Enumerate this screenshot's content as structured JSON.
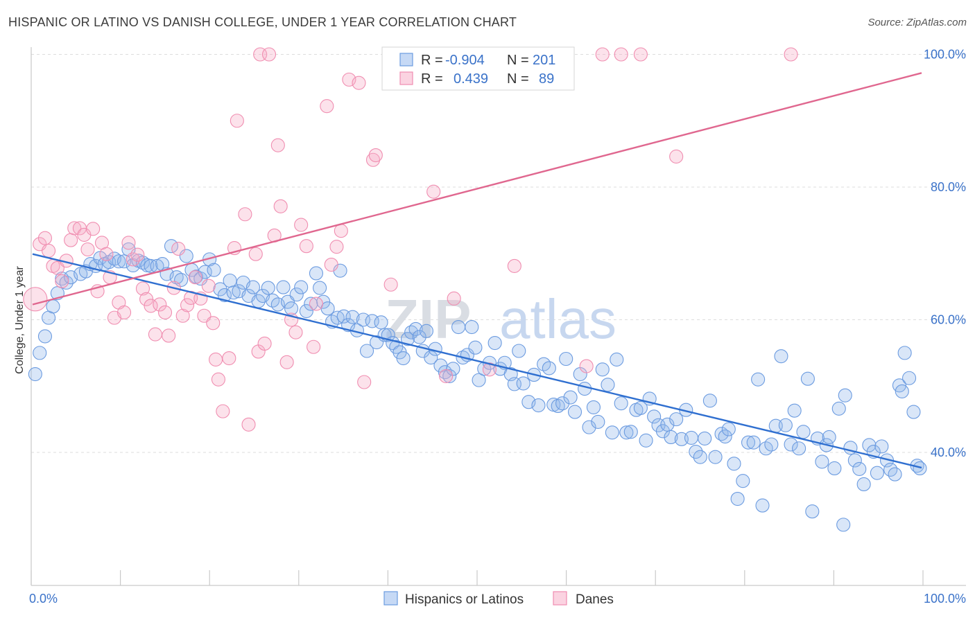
{
  "header": {
    "title": "HISPANIC OR LATINO VS DANISH COLLEGE, UNDER 1 YEAR CORRELATION CHART",
    "source": "Source: ZipAtlas.com"
  },
  "watermark": {
    "part1": "ZIP",
    "part2": "atlas"
  },
  "stats": {
    "rows": [
      {
        "r_label": "R =",
        "r_value": "-0.904",
        "n_label": "N =",
        "n_value": "201",
        "color": "#6b9be0"
      },
      {
        "r_label": "R =",
        "r_value": "0.439",
        "n_label": "N =",
        "n_value": "89",
        "color": "#f08db0"
      }
    ]
  },
  "legend": {
    "items": [
      {
        "label": "Hispanics or Latinos",
        "color": "#6b9be0"
      },
      {
        "label": "Danes",
        "color": "#f08db0"
      }
    ]
  },
  "chart_data": {
    "type": "scatter",
    "title": "HISPANIC OR LATINO VS DANISH COLLEGE, UNDER 1 YEAR CORRELATION CHART",
    "xlabel": "",
    "ylabel": "College, Under 1 year",
    "xlim": [
      0,
      100
    ],
    "ylim": [
      20,
      101
    ],
    "x_tick_labels": [
      "0.0%",
      "100.0%"
    ],
    "y_ticks": [
      40,
      60,
      80,
      100
    ],
    "y_tick_labels": [
      "40.0%",
      "60.0%",
      "80.0%",
      "100.0%"
    ],
    "grid": true,
    "legend_position": "bottom",
    "series": [
      {
        "name": "Hispanics or Latinos",
        "color": "#6b9be0",
        "trend": {
          "x": [
            0,
            100
          ],
          "y": [
            69.9,
            37.7
          ]
        },
        "points": [
          [
            0.3,
            51.8
          ],
          [
            0.8,
            55
          ],
          [
            1.4,
            57.5
          ],
          [
            1.8,
            60.3
          ],
          [
            2.3,
            62
          ],
          [
            2.8,
            64
          ],
          [
            3.3,
            66.2
          ],
          [
            3.8,
            65.6
          ],
          [
            4.3,
            66.4
          ],
          [
            5.4,
            66.9
          ],
          [
            6,
            67.3
          ],
          [
            6.5,
            68.4
          ],
          [
            7.1,
            68.1
          ],
          [
            7.6,
            69.3
          ],
          [
            8.1,
            68.4
          ],
          [
            8.6,
            68.7
          ],
          [
            9.2,
            69.2
          ],
          [
            9.7,
            68.8
          ],
          [
            10.3,
            68.8
          ],
          [
            10.8,
            70.6
          ],
          [
            11.3,
            68.2
          ],
          [
            11.9,
            68.9
          ],
          [
            12.4,
            68.6
          ],
          [
            12.9,
            68.2
          ],
          [
            13.3,
            68.1
          ],
          [
            14,
            68.1
          ],
          [
            14.6,
            68.4
          ],
          [
            15.1,
            66.9
          ],
          [
            15.6,
            71.1
          ],
          [
            16.2,
            66.4
          ],
          [
            16.7,
            66
          ],
          [
            17.3,
            69.6
          ],
          [
            17.9,
            67.5
          ],
          [
            18.4,
            66.5
          ],
          [
            18.9,
            66.2
          ],
          [
            19.4,
            67.2
          ],
          [
            19.9,
            69.1
          ],
          [
            20.4,
            67.5
          ],
          [
            21.1,
            64.6
          ],
          [
            21.6,
            63.7
          ],
          [
            22.2,
            65.9
          ],
          [
            22.6,
            64.1
          ],
          [
            23.2,
            64.3
          ],
          [
            23.7,
            65.6
          ],
          [
            24.3,
            63.6
          ],
          [
            24.8,
            64.9
          ],
          [
            25.4,
            62.8
          ],
          [
            25.9,
            63.6
          ],
          [
            26.5,
            64.8
          ],
          [
            27,
            62.9
          ],
          [
            27.6,
            62.3
          ],
          [
            28.2,
            64.9
          ],
          [
            28.7,
            62.7
          ],
          [
            29.1,
            61.7
          ],
          [
            29.7,
            63.8
          ],
          [
            30.2,
            64.9
          ],
          [
            30.8,
            61.3
          ],
          [
            31.3,
            62.4
          ],
          [
            31.9,
            67
          ],
          [
            32.3,
            64.8
          ],
          [
            32.7,
            62.7
          ],
          [
            33.2,
            61.7
          ],
          [
            33.7,
            59.7
          ],
          [
            34.3,
            60.3
          ],
          [
            34.6,
            67.4
          ],
          [
            35,
            60.5
          ],
          [
            35.5,
            59.2
          ],
          [
            36,
            60.4
          ],
          [
            36.5,
            58.4
          ],
          [
            37.2,
            60
          ],
          [
            37.6,
            55.3
          ],
          [
            38.2,
            59.8
          ],
          [
            38.7,
            56.6
          ],
          [
            39.2,
            59.6
          ],
          [
            39.6,
            57.7
          ],
          [
            40,
            57.7
          ],
          [
            40.5,
            56.5
          ],
          [
            40.9,
            55.9
          ],
          [
            41.3,
            55.1
          ],
          [
            41.7,
            54.2
          ],
          [
            42.2,
            57.1
          ],
          [
            42.6,
            58.1
          ],
          [
            43.1,
            58.6
          ],
          [
            43.5,
            57.4
          ],
          [
            43.9,
            55.3
          ],
          [
            44.3,
            58.3
          ],
          [
            44.8,
            54.3
          ],
          [
            45.3,
            55.6
          ],
          [
            45.9,
            53.1
          ],
          [
            46.4,
            52.1
          ],
          [
            46.9,
            51.5
          ],
          [
            47.3,
            52.6
          ],
          [
            47.9,
            58.9
          ],
          [
            48.4,
            54.3
          ],
          [
            48.9,
            54.7
          ],
          [
            49.4,
            58.9
          ],
          [
            49.8,
            55.8
          ],
          [
            50.2,
            50.9
          ],
          [
            50.8,
            52.6
          ],
          [
            51.4,
            53.5
          ],
          [
            52,
            56.5
          ],
          [
            52.6,
            52.6
          ],
          [
            53.1,
            53.5
          ],
          [
            53.8,
            51.8
          ],
          [
            54.2,
            50.3
          ],
          [
            54.7,
            55.3
          ],
          [
            55.2,
            50.4
          ],
          [
            55.8,
            47.6
          ],
          [
            56.4,
            51.7
          ],
          [
            56.9,
            47.1
          ],
          [
            57.5,
            53.3
          ],
          [
            58.1,
            52.7
          ],
          [
            58.6,
            47.2
          ],
          [
            59.1,
            47
          ],
          [
            59.6,
            47.4
          ],
          [
            60,
            54.1
          ],
          [
            60.5,
            48.3
          ],
          [
            61,
            46.1
          ],
          [
            61.6,
            51.8
          ],
          [
            62.1,
            49.6
          ],
          [
            62.6,
            43.8
          ],
          [
            63.1,
            46.8
          ],
          [
            63.6,
            44.6
          ],
          [
            64.1,
            52.5
          ],
          [
            64.7,
            50.2
          ],
          [
            65.2,
            43
          ],
          [
            65.7,
            54
          ],
          [
            66.2,
            47.4
          ],
          [
            66.8,
            43
          ],
          [
            67.3,
            43.1
          ],
          [
            67.9,
            46.4
          ],
          [
            68.4,
            46.7
          ],
          [
            69,
            41.8
          ],
          [
            69.4,
            48.1
          ],
          [
            69.9,
            45.4
          ],
          [
            70.4,
            44.1
          ],
          [
            70.9,
            43.2
          ],
          [
            71.4,
            44.2
          ],
          [
            71.8,
            42.3
          ],
          [
            72.4,
            45
          ],
          [
            73,
            42
          ],
          [
            73.5,
            46.4
          ],
          [
            74.1,
            42.2
          ],
          [
            74.6,
            40.1
          ],
          [
            75.1,
            39.3
          ],
          [
            75.6,
            42.1
          ],
          [
            76.2,
            47.8
          ],
          [
            76.8,
            39.3
          ],
          [
            77.5,
            42.8
          ],
          [
            77.9,
            42.4
          ],
          [
            78.3,
            43.5
          ],
          [
            78.9,
            38.3
          ],
          [
            79.3,
            33
          ],
          [
            79.9,
            35.7
          ],
          [
            80.5,
            41.5
          ],
          [
            81.1,
            41.5
          ],
          [
            81.6,
            51
          ],
          [
            82.1,
            32
          ],
          [
            82.5,
            40.6
          ],
          [
            83.1,
            41.2
          ],
          [
            83.6,
            44
          ],
          [
            84.2,
            54.5
          ],
          [
            84.7,
            44.1
          ],
          [
            85.3,
            41.2
          ],
          [
            85.7,
            46.3
          ],
          [
            86.2,
            40.6
          ],
          [
            86.7,
            43.1
          ],
          [
            87.2,
            51.1
          ],
          [
            87.7,
            31.1
          ],
          [
            88.3,
            42.1
          ],
          [
            88.8,
            38.6
          ],
          [
            89.3,
            41.1
          ],
          [
            89.6,
            42.3
          ],
          [
            90.2,
            37.6
          ],
          [
            90.7,
            46.6
          ],
          [
            91.2,
            29.1
          ],
          [
            91.4,
            48.6
          ],
          [
            92,
            40.7
          ],
          [
            92.5,
            38.8
          ],
          [
            93,
            37.5
          ],
          [
            93.5,
            35.2
          ],
          [
            94.1,
            41.1
          ],
          [
            94.6,
            40.1
          ],
          [
            95,
            36.9
          ],
          [
            95.5,
            40.9
          ],
          [
            96.1,
            38.8
          ],
          [
            96.5,
            37.4
          ],
          [
            97,
            36.7
          ],
          [
            97.5,
            50.1
          ],
          [
            97.8,
            49.2
          ],
          [
            98.1,
            55
          ],
          [
            98.6,
            51.2
          ],
          [
            99.1,
            46.1
          ],
          [
            99.5,
            38
          ],
          [
            99.8,
            37.6
          ]
        ]
      },
      {
        "name": "Danes",
        "color": "#f08db0",
        "trend": {
          "x": [
            0,
            100
          ],
          "y": [
            62.3,
            97.2
          ]
        },
        "points": [
          [
            0.3,
            63.1
          ],
          [
            0.8,
            71.4
          ],
          [
            1.4,
            72.3
          ],
          [
            1.8,
            70.4
          ],
          [
            2.3,
            68.1
          ],
          [
            2.8,
            67.8
          ],
          [
            3.3,
            65.8
          ],
          [
            3.8,
            68.9
          ],
          [
            4.3,
            72
          ],
          [
            4.7,
            73.8
          ],
          [
            5.3,
            73.8
          ],
          [
            5.8,
            72.8
          ],
          [
            6.2,
            70.6
          ],
          [
            6.8,
            73.7
          ],
          [
            7.3,
            64.3
          ],
          [
            7.8,
            71.6
          ],
          [
            8.3,
            69.9
          ],
          [
            8.7,
            66.4
          ],
          [
            9.2,
            60.3
          ],
          [
            9.7,
            62.6
          ],
          [
            10.3,
            61.1
          ],
          [
            10.8,
            71.6
          ],
          [
            11.3,
            69.1
          ],
          [
            11.8,
            69.8
          ],
          [
            12.4,
            64.7
          ],
          [
            12.8,
            63.1
          ],
          [
            13.3,
            62.1
          ],
          [
            13.8,
            57.8
          ],
          [
            14.3,
            62.3
          ],
          [
            14.9,
            61.1
          ],
          [
            15.3,
            57.6
          ],
          [
            15.9,
            64.8
          ],
          [
            16.4,
            70.7
          ],
          [
            16.9,
            60.6
          ],
          [
            17.4,
            62.2
          ],
          [
            17.8,
            63.3
          ],
          [
            18.3,
            66.4
          ],
          [
            18.9,
            63.2
          ],
          [
            19.3,
            60.6
          ],
          [
            19.8,
            65.1
          ],
          [
            20.3,
            59.5
          ],
          [
            20.6,
            54
          ],
          [
            20.9,
            51
          ],
          [
            21.4,
            46.2
          ],
          [
            22.1,
            54.2
          ],
          [
            22.7,
            70.8
          ],
          [
            23,
            90
          ],
          [
            23.9,
            75.9
          ],
          [
            24.3,
            44.2
          ],
          [
            25.1,
            69.9
          ],
          [
            25.4,
            55.2
          ],
          [
            25.6,
            100
          ],
          [
            26.1,
            56.4
          ],
          [
            26.6,
            100
          ],
          [
            27.2,
            72.7
          ],
          [
            27.6,
            86.3
          ],
          [
            27.9,
            77.1
          ],
          [
            28.6,
            53.6
          ],
          [
            29.1,
            60
          ],
          [
            29.6,
            58.1
          ],
          [
            30.2,
            74.3
          ],
          [
            30.8,
            71.1
          ],
          [
            31.6,
            55.9
          ],
          [
            31.9,
            62.4
          ],
          [
            33.1,
            92.2
          ],
          [
            33.6,
            68.3
          ],
          [
            34.2,
            71
          ],
          [
            34.7,
            73.4
          ],
          [
            35.6,
            96.2
          ],
          [
            36.7,
            95.7
          ],
          [
            37.3,
            50.6
          ],
          [
            38.3,
            84.1
          ],
          [
            38.6,
            84.8
          ],
          [
            40.3,
            65.3
          ],
          [
            42.6,
            100
          ],
          [
            45.1,
            79.3
          ],
          [
            46.5,
            51.5
          ],
          [
            47.4,
            63.2
          ],
          [
            49.3,
            100
          ],
          [
            51.4,
            52.5
          ],
          [
            54.2,
            68.1
          ],
          [
            59.8,
            100
          ],
          [
            62.3,
            53
          ],
          [
            64.1,
            100
          ],
          [
            66.2,
            100
          ],
          [
            68.4,
            100
          ],
          [
            72.4,
            84.6
          ],
          [
            85.3,
            100
          ]
        ]
      }
    ]
  }
}
